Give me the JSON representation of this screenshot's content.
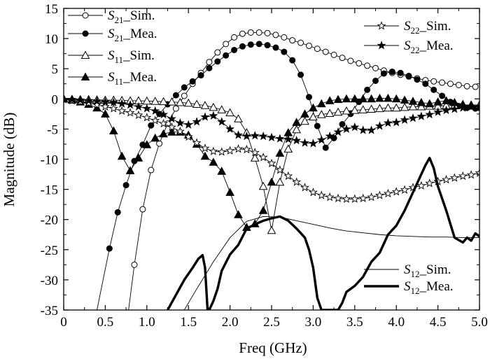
{
  "chart_data": {
    "type": "line",
    "title": "",
    "xlabel": "Freq (GHz)",
    "ylabel": "Magnitude (dB)",
    "xlim": [
      0,
      5.0
    ],
    "ylim": [
      -35,
      15
    ],
    "grid": false,
    "legend_placement": "top-left, top-right and bottom-right",
    "x_ticks": [
      "0",
      "0.5",
      "1.0",
      "1.5",
      "2.0",
      "2.5",
      "3.0",
      "3.5",
      "4.0",
      "4.5",
      "5.0"
    ],
    "y_ticks": [
      "15",
      "10",
      "5",
      "0",
      "-5",
      "-10",
      "-15",
      "-20",
      "-25",
      "-30",
      "-35"
    ],
    "series": [
      {
        "name": "S21_Sim.",
        "legend_main": "S",
        "legend_sub": "21",
        "legend_suffix": "_Sim.",
        "style": "thin-line-open-circle",
        "color": "#000000",
        "x": [
          0.78,
          0.85,
          0.95,
          1.05,
          1.15,
          1.25,
          1.35,
          1.45,
          1.55,
          1.65,
          1.75,
          1.85,
          1.95,
          2.05,
          2.15,
          2.25,
          2.35,
          2.45,
          2.55,
          2.65,
          2.75,
          2.85,
          2.95,
          3.05,
          3.15,
          3.25,
          3.35,
          3.45,
          3.55,
          3.65,
          3.75,
          3.85,
          3.95,
          4.05,
          4.15,
          4.25,
          4.35,
          4.45,
          4.55,
          4.65,
          4.75,
          4.85,
          4.95
        ],
        "y": [
          -35,
          -27.5,
          -18.3,
          -11.8,
          -7.4,
          -4.1,
          -1.6,
          0.5,
          2.5,
          4.3,
          6.1,
          7.7,
          9.1,
          10.2,
          10.8,
          11.0,
          11.0,
          10.9,
          10.6,
          10.2,
          9.7,
          9.3,
          8.8,
          8.3,
          7.8,
          7.3,
          6.8,
          6.3,
          5.9,
          5.5,
          5.1,
          4.7,
          4.3,
          4.0,
          3.7,
          3.4,
          3.1,
          2.9,
          2.7,
          2.5,
          2.3,
          2.1,
          2.0
        ]
      },
      {
        "name": "S21_Mea.",
        "legend_main": "S",
        "legend_sub": "21",
        "legend_suffix": "_Mea.",
        "style": "thin-line-filled-circle",
        "color": "#000000",
        "x": [
          0.4,
          0.55,
          0.65,
          0.75,
          0.85,
          0.95,
          1.05,
          1.15,
          1.25,
          1.35,
          1.45,
          1.55,
          1.65,
          1.75,
          1.85,
          1.95,
          2.05,
          2.15,
          2.25,
          2.35,
          2.45,
          2.55,
          2.65,
          2.75,
          2.85,
          2.95,
          3.05,
          3.15,
          3.25,
          3.35,
          3.45,
          3.55,
          3.65,
          3.75,
          3.85,
          3.95,
          4.05,
          4.15,
          4.25,
          4.35,
          4.45,
          4.55,
          4.65,
          4.75,
          4.85,
          4.95
        ],
        "y": [
          -35,
          -24.8,
          -18.8,
          -14.3,
          -10.3,
          -7.6,
          -4.4,
          -2.5,
          -0.9,
          0.6,
          1.9,
          2.9,
          3.9,
          5.1,
          6.2,
          7.2,
          8.1,
          8.7,
          9.0,
          9.1,
          8.9,
          8.5,
          7.8,
          6.4,
          4.0,
          0.3,
          -4.5,
          -8.1,
          -6.5,
          -4.2,
          -2.5,
          -0.5,
          1.5,
          3.0,
          4.2,
          4.5,
          4.3,
          3.8,
          3.2,
          2.5,
          1.5,
          0.5,
          -0.5,
          -1.2,
          -1.5,
          -1.6
        ]
      },
      {
        "name": "S11_Sim.",
        "legend_main": "S",
        "legend_sub": "11",
        "legend_suffix": "_Sim.",
        "style": "thin-line-open-triangle",
        "color": "#000000",
        "x": [
          0.0,
          0.1,
          0.2,
          0.3,
          0.4,
          0.5,
          0.6,
          0.7,
          0.8,
          0.9,
          1.0,
          1.1,
          1.2,
          1.3,
          1.4,
          1.5,
          1.6,
          1.7,
          1.8,
          1.9,
          2.0,
          2.1,
          2.2,
          2.3,
          2.4,
          2.5,
          2.6,
          2.7,
          2.8,
          2.9,
          3.0,
          3.1,
          3.2,
          3.3,
          3.4,
          3.5,
          3.6,
          3.7,
          3.8,
          3.9,
          4.0,
          4.1,
          4.2,
          4.3,
          4.4,
          4.5,
          4.6,
          4.7,
          4.8,
          4.9,
          5.0
        ],
        "y": [
          0,
          -0.05,
          -0.1,
          -0.1,
          -0.15,
          -0.2,
          -0.2,
          -0.25,
          -0.3,
          -0.3,
          -0.35,
          -0.4,
          -0.45,
          -0.5,
          -0.6,
          -0.7,
          -0.9,
          -1.1,
          -1.4,
          -1.8,
          -2.3,
          -3.3,
          -5.6,
          -9.8,
          -14.5,
          -21.8,
          -13.8,
          -8.3,
          -5.1,
          -3.7,
          -3.0,
          -2.6,
          -2.4,
          -2.2,
          -2.0,
          -1.9,
          -1.8,
          -1.7,
          -1.6,
          -1.5,
          -1.5,
          -1.4,
          -1.3,
          -1.3,
          -1.2,
          -1.2,
          -1.1,
          -1.1,
          -1.0,
          -1.0,
          -1.0
        ]
      },
      {
        "name": "S11_Mea.",
        "legend_main": "S",
        "legend_sub": "11",
        "legend_suffix": "_Mea.",
        "style": "thin-line-filled-triangle",
        "color": "#000000",
        "x": [
          0.0,
          0.1,
          0.2,
          0.3,
          0.4,
          0.5,
          0.6,
          0.7,
          0.8,
          0.9,
          1.0,
          1.1,
          1.2,
          1.3,
          1.4,
          1.5,
          1.6,
          1.7,
          1.8,
          1.9,
          2.0,
          2.1,
          2.2,
          2.3,
          2.4,
          2.5,
          2.6,
          2.7,
          2.8,
          2.9,
          3.0,
          3.1,
          3.2,
          3.3,
          3.4,
          3.5,
          3.6,
          3.7,
          3.8,
          3.9,
          4.0,
          4.1,
          4.2,
          4.3,
          4.4,
          4.5,
          4.6,
          4.7,
          4.8,
          4.9,
          5.0
        ],
        "y": [
          0,
          -0.2,
          -0.5,
          -0.9,
          -1.5,
          -2.5,
          -5.3,
          -9.5,
          -11.9,
          -9.8,
          -7.6,
          -6.5,
          -5.8,
          -5.5,
          -5.5,
          -6.0,
          -7.5,
          -9.5,
          -10.5,
          -12.0,
          -15.5,
          -19.2,
          -21.3,
          -20.7,
          -18.5,
          -13.8,
          -9.0,
          -5.6,
          -3.9,
          -2.5,
          -1.5,
          -0.8,
          -0.3,
          -0.1,
          0.0,
          0.0,
          0.0,
          0.0,
          0.1,
          0.1,
          0.0,
          -0.2,
          -0.4,
          -0.6,
          -0.8,
          -0.5,
          -0.3,
          -0.6,
          -0.9,
          -1.2,
          -1.4
        ]
      },
      {
        "name": "S22_Sim.",
        "legend_main": "S",
        "legend_sub": "22",
        "legend_suffix": "_Sim.",
        "style": "thin-line-open-star",
        "color": "#000000",
        "x": [
          0.0,
          0.1,
          0.2,
          0.3,
          0.4,
          0.5,
          0.6,
          0.7,
          0.8,
          0.9,
          1.0,
          1.1,
          1.2,
          1.3,
          1.4,
          1.5,
          1.6,
          1.7,
          1.8,
          1.9,
          2.0,
          2.1,
          2.2,
          2.3,
          2.4,
          2.5,
          2.6,
          2.7,
          2.8,
          2.9,
          3.0,
          3.1,
          3.2,
          3.3,
          3.4,
          3.5,
          3.6,
          3.7,
          3.8,
          3.9,
          4.0,
          4.1,
          4.2,
          4.3,
          4.4,
          4.5,
          4.6,
          4.7,
          4.8,
          4.9,
          5.0
        ],
        "y": [
          -0.1,
          -0.3,
          -0.5,
          -0.7,
          -1.0,
          -1.3,
          -1.6,
          -2.0,
          -2.3,
          -2.7,
          -3.1,
          -3.6,
          -4.1,
          -4.7,
          -5.4,
          -6.3,
          -7.3,
          -8.2,
          -8.7,
          -8.8,
          -8.6,
          -8.3,
          -8.4,
          -8.9,
          -9.7,
          -10.7,
          -11.8,
          -12.8,
          -13.8,
          -14.7,
          -15.5,
          -16.0,
          -16.3,
          -16.5,
          -16.6,
          -16.6,
          -16.5,
          -16.3,
          -16.0,
          -15.7,
          -15.4,
          -15.1,
          -14.7,
          -14.4,
          -14.0,
          -13.7,
          -13.4,
          -13.1,
          -12.8,
          -12.6,
          -12.3
        ]
      },
      {
        "name": "S22_Mea.",
        "legend_main": "S",
        "legend_sub": "22",
        "legend_suffix": "_Mea.",
        "style": "thin-line-filled-star",
        "color": "#000000",
        "x": [
          0.0,
          0.1,
          0.2,
          0.3,
          0.4,
          0.5,
          0.6,
          0.7,
          0.8,
          0.9,
          1.0,
          1.1,
          1.2,
          1.3,
          1.4,
          1.5,
          1.6,
          1.7,
          1.8,
          1.9,
          2.0,
          2.1,
          2.2,
          2.3,
          2.4,
          2.5,
          2.6,
          2.7,
          2.8,
          2.9,
          3.0,
          3.1,
          3.2,
          3.3,
          3.4,
          3.5,
          3.6,
          3.7,
          3.8,
          3.9,
          4.0,
          4.1,
          4.2,
          4.3,
          4.4,
          4.5,
          4.6,
          4.7,
          4.8,
          4.9,
          5.0
        ],
        "y": [
          -0.1,
          -0.1,
          -0.2,
          -0.3,
          -0.4,
          -0.5,
          -0.6,
          -0.8,
          -1.0,
          -1.3,
          -1.6,
          -2.0,
          -2.6,
          -3.3,
          -4.0,
          -4.3,
          -3.8,
          -3.0,
          -2.8,
          -3.8,
          -5.0,
          -6.0,
          -6.2,
          -6.1,
          -6.2,
          -6.4,
          -6.6,
          -6.7,
          -6.9,
          -7.3,
          -7.4,
          -6.8,
          -6.2,
          -5.5,
          -5.0,
          -4.7,
          -5.2,
          -5.2,
          -4.5,
          -4.0,
          -3.9,
          -3.5,
          -3.2,
          -2.9,
          -2.6,
          -2.2,
          -1.9,
          -1.7,
          -1.5,
          -1.3,
          -1.2
        ]
      },
      {
        "name": "S12_Sim.",
        "legend_main": "S",
        "legend_sub": "12",
        "legend_suffix": "_Sim.",
        "style": "thin-line",
        "color": "#000000",
        "x": [
          1.45,
          1.6,
          1.8,
          2.0,
          2.2,
          2.4,
          2.6,
          2.8,
          3.0,
          3.2,
          3.4,
          3.6,
          3.8,
          4.0,
          4.2,
          4.4,
          4.6,
          4.8,
          5.0
        ],
        "y": [
          -35,
          -31.5,
          -27.0,
          -23.0,
          -20.3,
          -19.5,
          -19.6,
          -20.2,
          -20.8,
          -21.4,
          -21.9,
          -22.2,
          -22.5,
          -22.7,
          -22.8,
          -22.9,
          -22.9,
          -23.0,
          -23.0
        ]
      },
      {
        "name": "S12_Mea.",
        "legend_main": "S",
        "legend_sub": "12",
        "legend_suffix": "_Mea.",
        "style": "thick-line",
        "color": "#000000",
        "x": [
          1.25,
          1.35,
          1.45,
          1.55,
          1.62,
          1.67,
          1.7,
          1.73,
          1.75,
          1.8,
          1.85,
          1.9,
          2.0,
          2.1,
          2.2,
          2.3,
          2.4,
          2.5,
          2.6,
          2.7,
          2.8,
          2.9,
          2.95,
          3.0,
          3.05,
          3.1,
          3.15,
          3.2,
          3.3,
          3.35,
          3.4,
          3.5,
          3.6,
          3.7,
          3.8,
          3.9,
          4.0,
          4.1,
          4.2,
          4.3,
          4.35,
          4.4,
          4.45,
          4.5,
          4.6,
          4.7,
          4.8,
          4.85,
          4.9,
          4.95,
          5.0
        ],
        "y": [
          -35,
          -32.5,
          -30.0,
          -28.0,
          -26.5,
          -25.9,
          -28.0,
          -35,
          -35,
          -33.5,
          -31.5,
          -28.5,
          -25.8,
          -24.2,
          -21.5,
          -20.8,
          -20.2,
          -19.8,
          -19.5,
          -20.2,
          -21.5,
          -23.0,
          -25.0,
          -28.0,
          -33.0,
          -35,
          -35,
          -35,
          -35,
          -33.8,
          -32.0,
          -31.0,
          -29.5,
          -27.0,
          -25.5,
          -22.5,
          -21.0,
          -18.5,
          -15.5,
          -12.5,
          -11.0,
          -9.8,
          -11.5,
          -14.5,
          -18.5,
          -23.0,
          -23.8,
          -23.0,
          -23.5,
          -22.3,
          -22.8
        ]
      }
    ]
  }
}
